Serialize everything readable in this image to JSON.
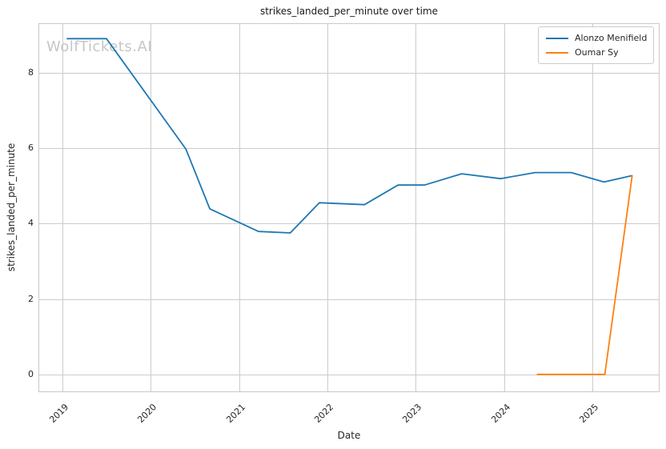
{
  "title": "strikes_landed_per_minute over time",
  "watermark": "WolfTickets.AI",
  "axes": {
    "xlabel": "Date",
    "ylabel": "strikes_landed_per_minute",
    "x_ticks": [
      2019,
      2020,
      2021,
      2022,
      2023,
      2024,
      2025
    ],
    "y_ticks": [
      0,
      2,
      4,
      6,
      8
    ]
  },
  "colors": {
    "grid": "#cccccc",
    "spine": "#c9c9c9",
    "text": "#262626",
    "watermark": "#c6c6c6",
    "background": "#ffffff"
  },
  "legend": {
    "position": "upper right",
    "items": [
      "Alonzo Menifield",
      "Oumar Sy"
    ]
  },
  "chart_data": {
    "type": "line",
    "title": "strikes_landed_per_minute over time",
    "xlabel": "Date",
    "ylabel": "strikes_landed_per_minute",
    "xlim": [
      2018.73,
      2025.76
    ],
    "ylim": [
      -0.45,
      9.31
    ],
    "grid": true,
    "legend_position": "upper right",
    "series": [
      {
        "name": "Alonzo Menifield",
        "color": "#1f77b4",
        "x": [
          2019.05,
          2019.5,
          2020.4,
          2020.67,
          2021.22,
          2021.58,
          2021.91,
          2022.42,
          2022.8,
          2023.1,
          2023.52,
          2023.96,
          2024.35,
          2024.76,
          2025.13,
          2025.45
        ],
        "y": [
          8.9,
          8.9,
          5.97,
          4.39,
          3.79,
          3.75,
          4.55,
          4.5,
          5.02,
          5.02,
          5.32,
          5.19,
          5.35,
          5.35,
          5.1,
          5.27
        ]
      },
      {
        "name": "Oumar Sy",
        "color": "#ff7f0e",
        "x": [
          2024.37,
          2025.14,
          2025.45
        ],
        "y": [
          0.0,
          0.0,
          5.28
        ]
      }
    ]
  }
}
